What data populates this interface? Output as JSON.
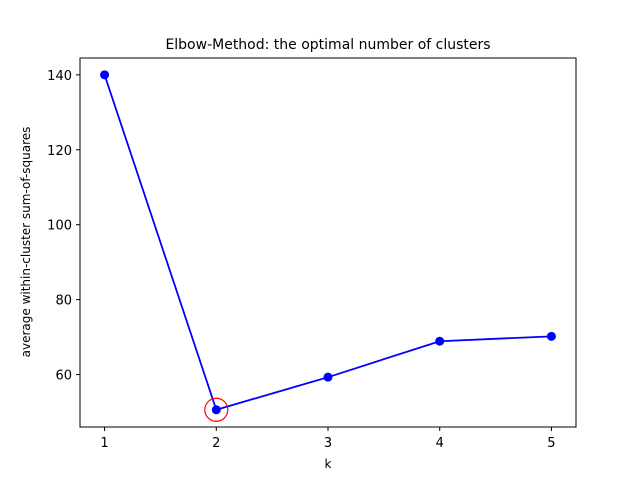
{
  "chart_data": {
    "type": "line",
    "title": "Elbow-Method: the optimal number of clusters",
    "xlabel": "k",
    "ylabel": "average within-cluster sum-of-squares",
    "x": [
      1,
      2,
      3,
      4,
      5
    ],
    "xticks": [
      1,
      2,
      3,
      4,
      5
    ],
    "yticks": [
      60,
      80,
      100,
      120,
      140
    ],
    "xlim": [
      0.78,
      5.22
    ],
    "ylim": [
      46.0,
      144.5
    ],
    "series": [
      {
        "values": [
          140.0,
          50.6,
          59.3,
          68.9,
          70.2
        ],
        "color": "#0000ff",
        "marker": "circle"
      }
    ],
    "highlight": {
      "x": 2,
      "y": 50.6,
      "color": "#ff0000",
      "shape": "open-circle"
    },
    "grid": false,
    "legend": "none"
  }
}
